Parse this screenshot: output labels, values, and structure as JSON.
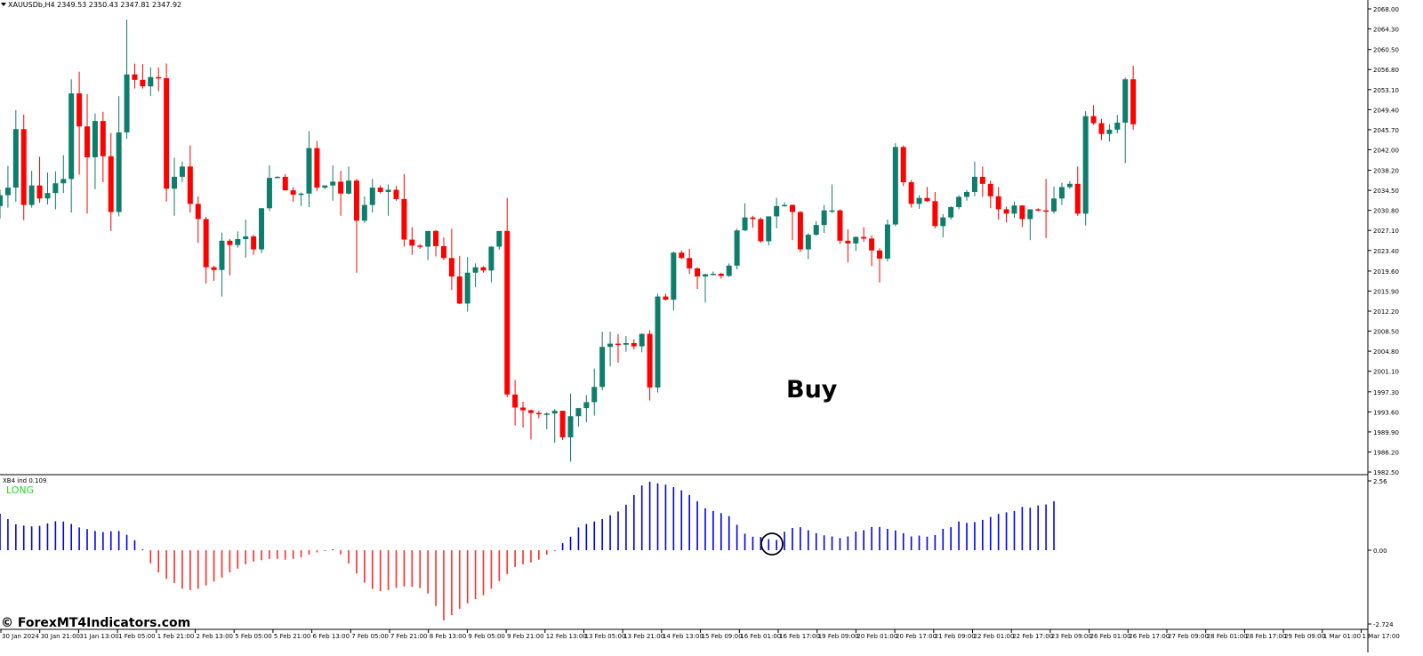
{
  "header": {
    "symbol_line": "XAUUSDb,H4  2349.53 2350.43 2347.81 2347.92"
  },
  "indicator": {
    "name": "XB4 ind 0.109",
    "signal": "LONG"
  },
  "annotation": {
    "text": "Buy"
  },
  "watermark": "© ForexMT4Indicators.com",
  "colors": {
    "bull": "#0f7d6b",
    "bear": "#ff0000",
    "hist_pos": "#0000ee",
    "hist_neg": "#ff2a2a",
    "signal": "#22dd22",
    "separator": "#808080"
  },
  "chart_data": [
    {
      "type": "candlestick",
      "y_ticks": [
        "2068.00",
        "2064.30",
        "2060.50",
        "2056.80",
        "2053.10",
        "2049.40",
        "2045.70",
        "2042.00",
        "2038.20",
        "2034.50",
        "2030.80",
        "2027.10",
        "2023.40",
        "2019.60",
        "2015.90",
        "2012.20",
        "2008.50",
        "2004.80",
        "2001.10",
        "1997.30",
        "1993.60",
        "1989.90",
        "1986.20",
        "1982.50"
      ],
      "ylim": [
        1982.5,
        2068.0
      ],
      "x_ticks": [
        "30 Jan 2024",
        "30 Jan 21:00",
        "31 Jan 13:00",
        "1 Feb 05:00",
        "1 Feb 21:00",
        "2 Feb 13:00",
        "5 Feb 05:00",
        "5 Feb 21:00",
        "6 Feb 13:00",
        "7 Feb 05:00",
        "7 Feb 21:00",
        "8 Feb 13:00",
        "9 Feb 05:00",
        "9 Feb 21:00",
        "12 Feb 13:00",
        "13 Feb 05:00",
        "13 Feb 21:00",
        "14 Feb 13:00",
        "15 Feb 09:00",
        "16 Feb 01:00",
        "16 Feb 17:00",
        "19 Feb 09:00",
        "20 Feb 01:00",
        "20 Feb 17:00",
        "21 Feb 09:00",
        "22 Feb 01:00",
        "22 Feb 17:00",
        "23 Feb 09:00",
        "26 Feb 01:00",
        "26 Feb 17:00",
        "27 Feb 09:00",
        "28 Feb 01:00",
        "28 Feb 17:00",
        "29 Feb 09:00",
        "1 Mar 01:00",
        "1 Mar 17:00"
      ],
      "ohlc": [
        [
          2031.6,
          2034.6,
          2029.3,
          2033.6
        ],
        [
          2033.6,
          2039.0,
          2031.3,
          2035.0
        ],
        [
          2035.0,
          2049.3,
          2032.4,
          2045.8
        ],
        [
          2045.8,
          2048.5,
          2029.0,
          2031.8
        ],
        [
          2031.8,
          2038.1,
          2031.3,
          2035.4
        ],
        [
          2035.4,
          2040.7,
          2032.2,
          2033.0
        ],
        [
          2033.0,
          2037.8,
          2031.9,
          2034.0
        ],
        [
          2034.0,
          2038.0,
          2031.0,
          2035.8
        ],
        [
          2035.8,
          2041.0,
          2034.0,
          2036.6
        ],
        [
          2036.6,
          2055.0,
          2030.4,
          2052.4
        ],
        [
          2052.4,
          2056.4,
          2037.4,
          2046.3
        ],
        [
          2046.3,
          2052.3,
          2030.2,
          2040.6
        ],
        [
          2040.6,
          2048.7,
          2034.7,
          2047.3
        ],
        [
          2047.3,
          2049.0,
          2036.0,
          2040.8
        ],
        [
          2040.8,
          2045.1,
          2027.0,
          2030.5
        ],
        [
          2030.5,
          2051.9,
          2029.7,
          2045.2
        ],
        [
          2045.2,
          2066.0,
          2044.0,
          2055.9
        ],
        [
          2055.9,
          2057.9,
          2053.3,
          2054.9
        ],
        [
          2054.9,
          2057.8,
          2053.3,
          2053.7
        ],
        [
          2053.7,
          2057.2,
          2051.9,
          2055.4
        ],
        [
          2055.4,
          2057.2,
          2052.8,
          2055.2
        ],
        [
          2055.2,
          2057.9,
          2032.4,
          2034.8
        ],
        [
          2034.8,
          2040.5,
          2029.8,
          2037.0
        ],
        [
          2037.0,
          2039.8,
          2036.0,
          2038.9
        ],
        [
          2038.9,
          2042.8,
          2030.4,
          2032.0
        ],
        [
          2032.0,
          2033.4,
          2024.8,
          2029.2
        ],
        [
          2029.2,
          2029.6,
          2017.3,
          2020.3
        ],
        [
          2020.3,
          2020.6,
          2017.8,
          2019.8
        ],
        [
          2019.8,
          2026.7,
          2014.9,
          2025.2
        ],
        [
          2025.2,
          2025.5,
          2018.8,
          2024.4
        ],
        [
          2024.4,
          2026.9,
          2023.9,
          2025.5
        ],
        [
          2025.5,
          2029.1,
          2022.1,
          2026.0
        ],
        [
          2026.0,
          2026.3,
          2022.6,
          2023.6
        ],
        [
          2023.6,
          2031.2,
          2022.9,
          2031.2
        ],
        [
          2031.2,
          2039.1,
          2030.7,
          2036.8
        ],
        [
          2036.8,
          2037.1,
          2036.8,
          2037.0
        ],
        [
          2037.0,
          2037.5,
          2034.5,
          2034.5
        ],
        [
          2034.5,
          2035.1,
          2032.4,
          2033.7
        ],
        [
          2033.7,
          2034.1,
          2031.6,
          2033.9
        ],
        [
          2033.9,
          2045.4,
          2031.4,
          2042.3
        ],
        [
          2042.3,
          2043.6,
          2034.4,
          2035.0
        ],
        [
          2035.0,
          2035.4,
          2034.7,
          2035.4
        ],
        [
          2035.4,
          2039.1,
          2032.6,
          2036.1
        ],
        [
          2036.1,
          2038.1,
          2029.8,
          2033.9
        ],
        [
          2033.9,
          2038.9,
          2033.7,
          2036.3
        ],
        [
          2036.3,
          2036.6,
          2019.3,
          2028.9
        ],
        [
          2028.9,
          2033.4,
          2028.5,
          2031.8
        ],
        [
          2031.8,
          2036.6,
          2030.4,
          2035.0
        ],
        [
          2035.0,
          2035.4,
          2033.9,
          2034.2
        ],
        [
          2034.2,
          2035.6,
          2029.8,
          2034.6
        ],
        [
          2034.6,
          2035.3,
          2032.6,
          2032.9
        ],
        [
          2032.9,
          2037.5,
          2024.1,
          2025.4
        ],
        [
          2025.4,
          2027.7,
          2022.6,
          2024.3
        ],
        [
          2024.3,
          2024.6,
          2023.7,
          2024.1
        ],
        [
          2024.1,
          2027.0,
          2021.6,
          2027.0
        ],
        [
          2027.0,
          2027.2,
          2022.3,
          2024.2
        ],
        [
          2024.2,
          2025.8,
          2021.6,
          2022.0
        ],
        [
          2022.0,
          2027.4,
          2016.1,
          2018.6
        ],
        [
          2018.6,
          2022.4,
          2013.5,
          2013.6
        ],
        [
          2013.6,
          2022.2,
          2012.1,
          2019.3
        ],
        [
          2019.3,
          2021.0,
          2016.6,
          2020.3
        ],
        [
          2020.3,
          2020.5,
          2019.3,
          2019.7
        ],
        [
          2019.7,
          2024.2,
          2017.5,
          2024.1
        ],
        [
          2024.1,
          2027.0,
          2023.5,
          2027.0
        ],
        [
          2027.0,
          2033.1,
          1996.3,
          1996.8
        ],
        [
          1996.8,
          1999.5,
          1991.1,
          1994.4
        ],
        [
          1994.4,
          1995.5,
          1990.7,
          1993.9
        ],
        [
          1993.9,
          1994.0,
          1988.5,
          1993.4
        ],
        [
          1993.4,
          1993.8,
          1992.4,
          1993.3
        ],
        [
          1993.3,
          1993.5,
          1990.4,
          1993.3
        ],
        [
          1993.3,
          1994.1,
          1987.9,
          1993.8
        ],
        [
          1993.8,
          1993.8,
          1988.4,
          1988.9
        ],
        [
          1988.9,
          1997.0,
          1984.4,
          1992.8
        ],
        [
          1992.8,
          1993.5,
          1990.9,
          1994.3
        ],
        [
          1994.3,
          1996.7,
          1991.7,
          1995.4
        ],
        [
          1995.4,
          2001.6,
          1992.9,
          1998.2
        ],
        [
          1998.2,
          2008.4,
          1997.6,
          2005.6
        ],
        [
          2005.6,
          2008.4,
          2002.0,
          2006.2
        ],
        [
          2006.2,
          2008.0,
          2002.7,
          2006.0
        ],
        [
          2006.0,
          2007.6,
          2004.7,
          2006.3
        ],
        [
          2006.3,
          2007.0,
          2005.1,
          2005.7
        ],
        [
          2005.7,
          2008.1,
          2004.6,
          2008.0
        ],
        [
          2008.0,
          2008.7,
          1995.7,
          1998.1
        ],
        [
          1998.1,
          2015.4,
          1997.2,
          2014.9
        ],
        [
          2014.9,
          2015.4,
          2014.2,
          2014.3
        ],
        [
          2014.3,
          2023.2,
          2012.3,
          2023.0
        ],
        [
          2023.0,
          2023.4,
          2021.8,
          2022.0
        ],
        [
          2022.0,
          2023.7,
          2019.1,
          2020.1
        ],
        [
          2020.1,
          2020.3,
          2016.3,
          2018.6
        ],
        [
          2018.6,
          2019.1,
          2013.8,
          2019.0
        ],
        [
          2019.0,
          2019.5,
          2018.8,
          2019.1
        ],
        [
          2019.1,
          2019.3,
          2018.2,
          2018.7
        ],
        [
          2018.7,
          2021.0,
          2018.5,
          2020.6
        ],
        [
          2020.6,
          2027.4,
          2019.9,
          2027.1
        ],
        [
          2027.1,
          2032.1,
          2027.0,
          2029.5
        ],
        [
          2029.5,
          2029.8,
          2027.6,
          2029.2
        ],
        [
          2029.2,
          2029.5,
          2024.8,
          2025.1
        ],
        [
          2025.1,
          2029.3,
          2024.3,
          2029.7
        ],
        [
          2029.7,
          2033.1,
          2027.5,
          2031.6
        ],
        [
          2031.6,
          2032.3,
          2031.5,
          2031.8
        ],
        [
          2031.8,
          2031.9,
          2025.3,
          2030.5
        ],
        [
          2030.5,
          2030.7,
          2023.1,
          2023.6
        ],
        [
          2023.6,
          2026.6,
          2021.8,
          2026.3
        ],
        [
          2026.3,
          2028.8,
          2026.1,
          2028.1
        ],
        [
          2028.1,
          2031.8,
          2026.6,
          2030.8
        ],
        [
          2030.8,
          2035.6,
          2030.3,
          2030.8
        ],
        [
          2030.8,
          2031.0,
          2024.6,
          2025.2
        ],
        [
          2025.2,
          2027.3,
          2021.2,
          2024.7
        ],
        [
          2024.7,
          2026.0,
          2023.3,
          2025.9
        ],
        [
          2025.9,
          2027.7,
          2025.0,
          2025.6
        ],
        [
          2025.6,
          2026.2,
          2020.5,
          2023.4
        ],
        [
          2023.4,
          2023.8,
          2017.5,
          2021.9
        ],
        [
          2021.9,
          2029.1,
          2021.4,
          2028.2
        ],
        [
          2028.2,
          2043.2,
          2027.9,
          2042.5
        ],
        [
          2042.5,
          2042.8,
          2035.3,
          2036.0
        ],
        [
          2036.0,
          2036.4,
          2031.3,
          2032.0
        ],
        [
          2032.0,
          2033.6,
          2031.1,
          2033.1
        ],
        [
          2033.1,
          2035.1,
          2032.4,
          2032.5
        ],
        [
          2032.5,
          2034.2,
          2027.5,
          2027.9
        ],
        [
          2027.9,
          2030.1,
          2025.8,
          2029.5
        ],
        [
          2029.5,
          2031.6,
          2029.1,
          2031.4
        ],
        [
          2031.4,
          2033.6,
          2031.0,
          2033.3
        ],
        [
          2033.3,
          2034.6,
          2032.6,
          2034.2
        ],
        [
          2034.2,
          2039.8,
          2033.4,
          2037.0
        ],
        [
          2037.0,
          2038.9,
          2033.3,
          2035.7
        ],
        [
          2035.7,
          2036.3,
          2031.2,
          2033.4
        ],
        [
          2033.4,
          2035.1,
          2029.1,
          2031.0
        ],
        [
          2031.0,
          2031.5,
          2028.6,
          2030.2
        ],
        [
          2030.2,
          2032.4,
          2029.4,
          2031.7
        ],
        [
          2031.7,
          2031.8,
          2027.7,
          2029.2
        ],
        [
          2029.2,
          2030.3,
          2025.3,
          2031.0
        ],
        [
          2031.0,
          2031.2,
          2030.6,
          2030.8
        ],
        [
          2030.8,
          2036.6,
          2025.7,
          2030.6
        ],
        [
          2030.6,
          2035.2,
          2030.2,
          2033.0
        ],
        [
          2033.0,
          2035.9,
          2031.8,
          2035.1
        ],
        [
          2035.1,
          2036.2,
          2034.8,
          2035.7
        ],
        [
          2035.7,
          2038.9,
          2029.8,
          2030.2
        ],
        [
          2030.2,
          2049.1,
          2028.0,
          2048.2
        ],
        [
          2048.2,
          2050.2,
          2046.6,
          2046.9
        ],
        [
          2046.9,
          2047.7,
          2043.8,
          2044.9
        ],
        [
          2044.9,
          2046.7,
          2043.5,
          2045.7
        ],
        [
          2045.7,
          2048.4,
          2045.0,
          2047.0
        ],
        [
          2047.0,
          2055.3,
          2039.5,
          2055.0
        ],
        [
          2055.0,
          2057.5,
          2045.7,
          2046.7
        ]
      ]
    },
    {
      "type": "bar",
      "series": [
        {
          "name": "XB4 ind 0.109",
          "values": [
            1.35,
            1.15,
            0.96,
            0.91,
            0.88,
            0.9,
            0.99,
            1.07,
            1.06,
            0.97,
            0.84,
            0.78,
            0.71,
            0.67,
            0.7,
            0.71,
            0.57,
            0.37,
            0.01,
            -0.48,
            -0.82,
            -1.06,
            -1.21,
            -1.42,
            -1.47,
            -1.42,
            -1.3,
            -1.16,
            -1.01,
            -0.82,
            -0.68,
            -0.52,
            -0.42,
            -0.37,
            -0.32,
            -0.32,
            -0.35,
            -0.32,
            -0.26,
            -0.16,
            -0.08,
            -0.01,
            0.0,
            -0.15,
            -0.49,
            -0.86,
            -1.2,
            -1.43,
            -1.51,
            -1.47,
            -1.39,
            -1.34,
            -1.35,
            -1.4,
            -1.6,
            -2.06,
            -2.59,
            -2.4,
            -2.16,
            -1.96,
            -1.81,
            -1.66,
            -1.42,
            -1.14,
            -0.88,
            -0.62,
            -0.52,
            -0.45,
            -0.35,
            -0.16,
            -0.02,
            0.26,
            0.5,
            0.84,
            0.97,
            1.06,
            1.15,
            1.29,
            1.43,
            1.68,
            2.04,
            2.39,
            2.53,
            2.47,
            2.42,
            2.33,
            2.21,
            2.04,
            1.81,
            1.55,
            1.45,
            1.37,
            1.26,
            0.94,
            0.61,
            0.5,
            0.49,
            0.41,
            0.38,
            0.68,
            0.82,
            0.85,
            0.74,
            0.63,
            0.55,
            0.51,
            0.45,
            0.51,
            0.69,
            0.74,
            0.86,
            0.86,
            0.79,
            0.73,
            0.63,
            0.51,
            0.54,
            0.5,
            0.56,
            0.79,
            0.85,
            1.06,
            1.01,
            1.04,
            1.12,
            1.23,
            1.34,
            1.4,
            1.45,
            1.6,
            1.57,
            1.65,
            1.69,
            1.81
          ]
        }
      ],
      "ylim": [
        -2.724,
        2.56
      ],
      "y_ticks": [
        "2.56",
        "0.00",
        "-2.724"
      ]
    }
  ]
}
